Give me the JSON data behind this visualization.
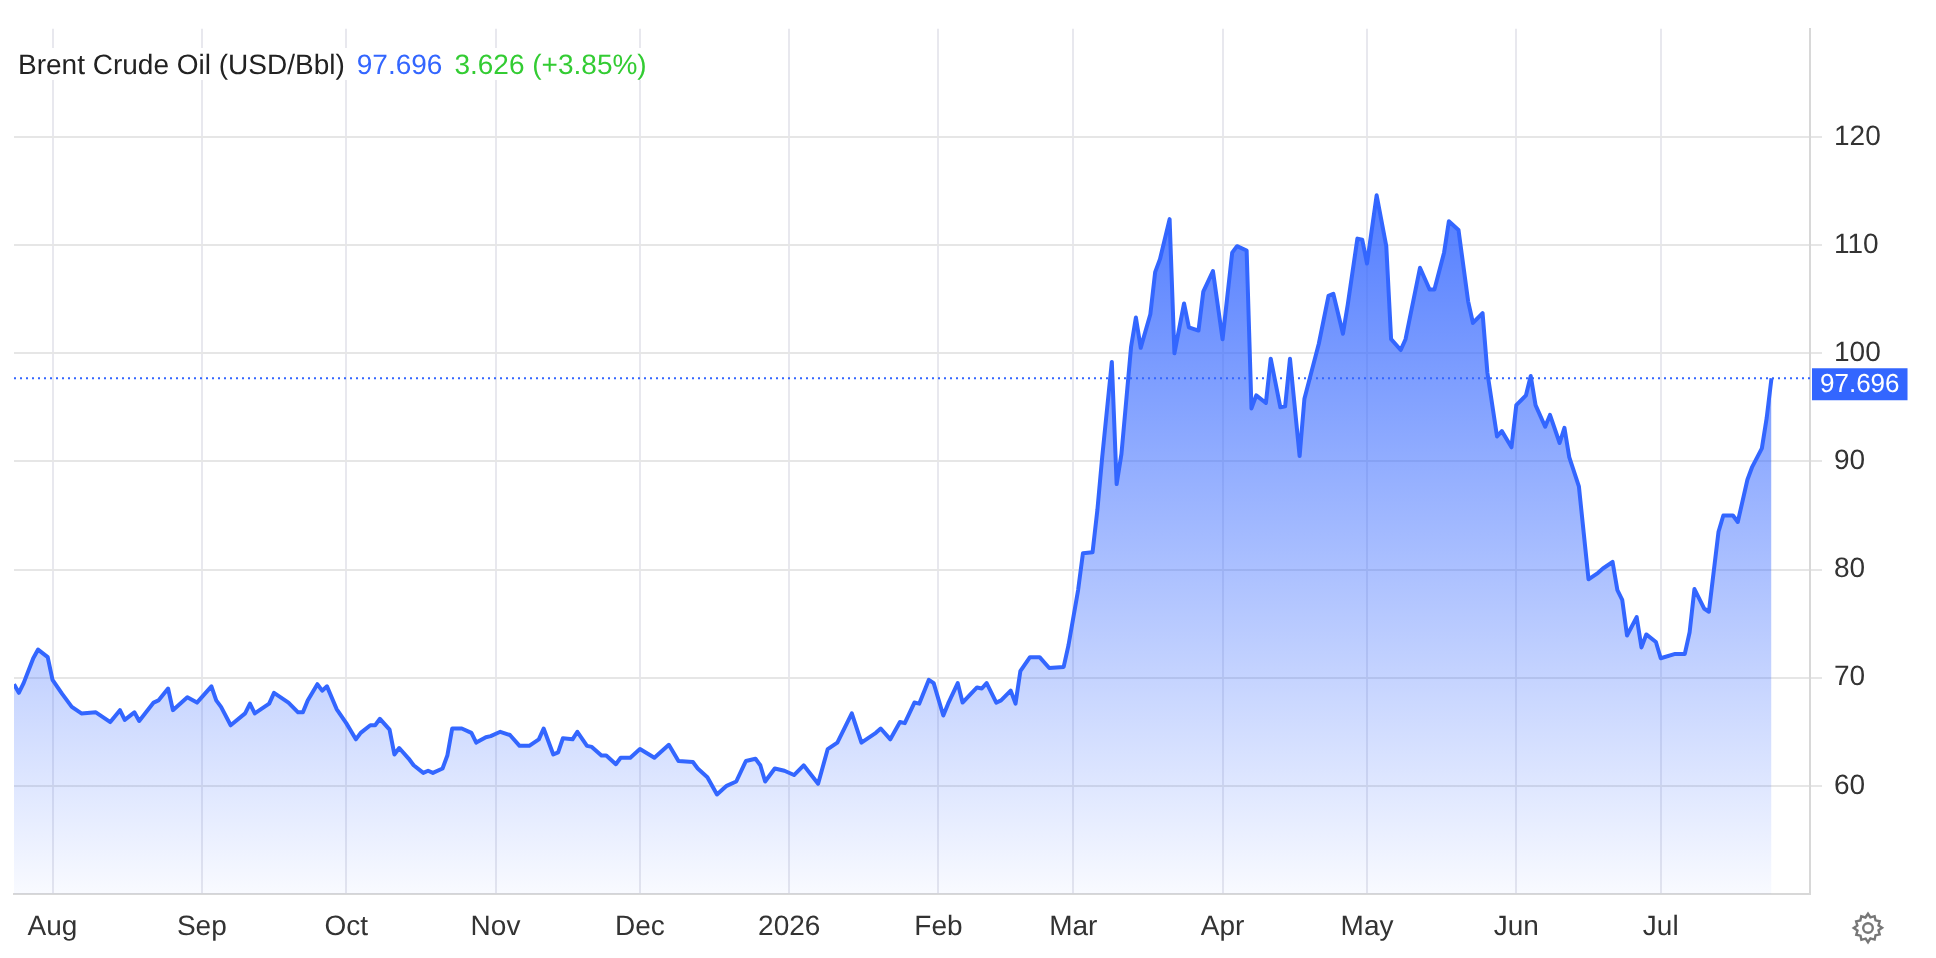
{
  "chart_data": {
    "type": "area",
    "title": "Brent Crude Oil (USD/Bbl)",
    "annotations": [
      "97.696",
      "3.626 (+3.85%)"
    ],
    "grid": true,
    "xlim": [
      "2025-07-24",
      "2026-08-01"
    ],
    "xticks": [
      {
        "value": "2025-08-01",
        "label": "Aug"
      },
      {
        "value": "2025-09-01",
        "label": "Sep"
      },
      {
        "value": "2025-10-01",
        "label": "Oct"
      },
      {
        "value": "2025-11-01",
        "label": "Nov"
      },
      {
        "value": "2025-12-01",
        "label": "Dec"
      },
      {
        "value": "2026-01-01",
        "label": "2026"
      },
      {
        "value": "2026-02-01",
        "label": "Feb"
      },
      {
        "value": "2026-03-01",
        "label": "Mar"
      },
      {
        "value": "2026-04-01",
        "label": "Apr"
      },
      {
        "value": "2026-05-01",
        "label": "May"
      },
      {
        "value": "2026-06-01",
        "label": "Jun"
      },
      {
        "value": "2026-07-01",
        "label": "Jul"
      }
    ],
    "ylim": [
      50,
      130
    ],
    "yticks": [
      60,
      70,
      80,
      90,
      100,
      110,
      120
    ],
    "ref_lines": [
      {
        "axis": "y",
        "value": 97.696,
        "label": "97.696",
        "color": "#3366ff",
        "line_style": "dotted"
      }
    ],
    "series": [
      {
        "color": "#3366ff",
        "x": [
          "2025-07-24",
          "2025-07-25",
          "2025-07-26",
          "2025-07-28",
          "2025-07-29",
          "2025-07-31",
          "2025-08-01",
          "2025-08-03",
          "2025-08-05",
          "2025-08-07",
          "2025-08-10",
          "2025-08-13",
          "2025-08-15",
          "2025-08-16",
          "2025-08-18",
          "2025-08-19",
          "2025-08-22",
          "2025-08-23",
          "2025-08-25",
          "2025-08-26",
          "2025-08-29",
          "2025-08-31",
          "2025-09-03",
          "2025-09-04",
          "2025-09-05",
          "2025-09-07",
          "2025-09-10",
          "2025-09-11",
          "2025-09-12",
          "2025-09-15",
          "2025-09-16",
          "2025-09-19",
          "2025-09-21",
          "2025-09-22",
          "2025-09-23",
          "2025-09-25",
          "2025-09-26",
          "2025-09-27",
          "2025-09-29",
          "2025-10-01",
          "2025-10-03",
          "2025-10-04",
          "2025-10-06",
          "2025-10-07",
          "2025-10-08",
          "2025-10-10",
          "2025-10-11",
          "2025-10-12",
          "2025-10-14",
          "2025-10-15",
          "2025-10-17",
          "2025-10-18",
          "2025-10-19",
          "2025-10-21",
          "2025-10-22",
          "2025-10-23",
          "2025-10-25",
          "2025-10-27",
          "2025-10-28",
          "2025-10-30",
          "2025-10-31",
          "2025-11-02",
          "2025-11-04",
          "2025-11-06",
          "2025-11-08",
          "2025-11-10",
          "2025-11-11",
          "2025-11-13",
          "2025-11-14",
          "2025-11-15",
          "2025-11-17",
          "2025-11-18",
          "2025-11-20",
          "2025-11-21",
          "2025-11-23",
          "2025-11-24",
          "2025-11-26",
          "2025-11-27",
          "2025-11-29",
          "2025-12-01",
          "2025-12-04",
          "2025-12-07",
          "2025-12-09",
          "2025-12-12",
          "2025-12-13",
          "2025-12-15",
          "2025-12-17",
          "2025-12-19",
          "2025-12-21",
          "2025-12-23",
          "2025-12-25",
          "2025-12-26",
          "2025-12-27",
          "2025-12-29",
          "2025-12-31",
          "2026-01-02",
          "2026-01-04",
          "2026-01-07",
          "2026-01-09",
          "2026-01-11",
          "2026-01-14",
          "2026-01-16",
          "2026-01-19",
          "2026-01-20",
          "2026-01-22",
          "2026-01-24",
          "2026-01-25",
          "2026-01-27",
          "2026-01-28",
          "2026-01-30",
          "2026-01-31",
          "2026-02-02",
          "2026-02-03",
          "2026-02-05",
          "2026-02-06",
          "2026-02-09",
          "2026-02-10",
          "2026-02-11",
          "2026-02-13",
          "2026-02-14",
          "2026-02-16",
          "2026-02-17",
          "2026-02-18",
          "2026-02-20",
          "2026-02-22",
          "2026-02-24",
          "2026-02-27",
          "2026-02-28",
          "2026-03-02",
          "2026-03-03",
          "2026-03-05",
          "2026-03-06",
          "2026-03-07",
          "2026-03-09",
          "2026-03-10",
          "2026-03-11",
          "2026-03-13",
          "2026-03-14",
          "2026-03-15",
          "2026-03-17",
          "2026-03-18",
          "2026-03-19",
          "2026-03-21",
          "2026-03-22",
          "2026-03-24",
          "2026-03-25",
          "2026-03-27",
          "2026-03-28",
          "2026-03-30",
          "2026-04-01",
          "2026-04-03",
          "2026-04-04",
          "2026-04-06",
          "2026-04-07",
          "2026-04-08",
          "2026-04-10",
          "2026-04-11",
          "2026-04-13",
          "2026-04-14",
          "2026-04-15",
          "2026-04-17",
          "2026-04-18",
          "2026-04-21",
          "2026-04-23",
          "2026-04-24",
          "2026-04-26",
          "2026-04-27",
          "2026-04-29",
          "2026-04-30",
          "2026-05-01",
          "2026-05-03",
          "2026-05-05",
          "2026-05-06",
          "2026-05-08",
          "2026-05-09",
          "2026-05-12",
          "2026-05-14",
          "2026-05-15",
          "2026-05-17",
          "2026-05-18",
          "2026-05-20",
          "2026-05-22",
          "2026-05-23",
          "2026-05-25",
          "2026-05-26",
          "2026-05-28",
          "2026-05-29",
          "2026-05-31",
          "2026-06-01",
          "2026-06-03",
          "2026-06-04",
          "2026-06-05",
          "2026-06-07",
          "2026-06-08",
          "2026-06-10",
          "2026-06-11",
          "2026-06-12",
          "2026-06-14",
          "2026-06-16",
          "2026-06-18",
          "2026-06-19",
          "2026-06-21",
          "2026-06-22",
          "2026-06-23",
          "2026-06-24",
          "2026-06-26",
          "2026-06-27",
          "2026-06-28",
          "2026-06-30",
          "2026-07-01",
          "2026-07-04",
          "2026-07-06",
          "2026-07-07",
          "2026-07-08",
          "2026-07-10",
          "2026-07-11",
          "2026-07-13",
          "2026-07-14",
          "2026-07-16",
          "2026-07-17",
          "2026-07-19",
          "2026-07-20",
          "2026-07-22",
          "2026-07-23",
          "2026-07-24"
        ],
        "values": [
          69.4,
          68.6,
          69.5,
          71.8,
          72.6,
          71.9,
          69.8,
          68.5,
          67.3,
          66.7,
          66.8,
          65.9,
          67.0,
          66.1,
          66.8,
          66.0,
          67.7,
          67.9,
          69.0,
          67.0,
          68.2,
          67.7,
          69.2,
          67.9,
          67.3,
          65.6,
          66.7,
          67.6,
          66.7,
          67.6,
          68.6,
          67.7,
          66.8,
          66.8,
          67.9,
          69.4,
          68.8,
          69.2,
          67.1,
          65.8,
          64.3,
          64.9,
          65.6,
          65.6,
          66.2,
          65.2,
          62.9,
          63.5,
          62.5,
          61.9,
          61.2,
          61.4,
          61.2,
          61.6,
          62.8,
          65.3,
          65.3,
          64.9,
          64.0,
          64.5,
          64.6,
          65.0,
          64.7,
          63.7,
          63.7,
          64.3,
          65.3,
          62.9,
          63.1,
          64.4,
          64.3,
          65.0,
          63.7,
          63.6,
          62.8,
          62.8,
          62.0,
          62.6,
          62.6,
          63.4,
          62.6,
          63.8,
          62.3,
          62.2,
          61.6,
          60.8,
          59.2,
          60.0,
          60.4,
          62.3,
          62.5,
          61.9,
          60.4,
          61.6,
          61.4,
          61.0,
          61.9,
          60.2,
          63.4,
          64.0,
          66.7,
          64.0,
          64.9,
          65.3,
          64.3,
          65.9,
          65.8,
          67.7,
          67.6,
          69.8,
          69.5,
          66.5,
          67.6,
          69.5,
          67.7,
          69.1,
          69.0,
          69.5,
          67.7,
          67.9,
          68.8,
          67.6,
          70.6,
          71.9,
          71.9,
          70.9,
          71.0,
          73.0,
          78.1,
          81.5,
          81.6,
          85.5,
          90.4,
          99.2,
          87.9,
          90.7,
          100.6,
          103.3,
          100.5,
          103.6,
          107.5,
          108.7,
          112.4,
          100.0,
          104.6,
          102.4,
          102.1,
          105.7,
          107.6,
          101.3,
          109.3,
          109.9,
          109.5,
          94.9,
          96.1,
          95.4,
          99.5,
          95.0,
          95.1,
          99.5,
          90.5,
          95.8,
          100.9,
          105.3,
          105.5,
          101.8,
          104.5,
          110.6,
          110.5,
          108.3,
          114.6,
          109.9,
          101.3,
          100.3,
          101.3,
          107.9,
          105.9,
          105.9,
          109.3,
          112.2,
          111.4,
          104.8,
          102.8,
          103.7,
          98.2,
          92.3,
          92.8,
          91.3,
          95.2,
          96.1,
          97.9,
          95.2,
          93.2,
          94.3,
          91.7,
          93.1,
          90.4,
          87.7,
          79.1,
          79.7,
          80.1,
          80.7,
          78.1,
          77.2,
          73.9,
          75.6,
          72.8,
          74.0,
          73.3,
          71.8,
          72.2,
          72.2,
          74.2,
          78.2,
          76.4,
          76.1,
          83.5,
          85.0,
          85.0,
          84.4,
          88.3,
          89.5,
          91.2,
          94.0,
          97.696
        ]
      }
    ]
  }
}
